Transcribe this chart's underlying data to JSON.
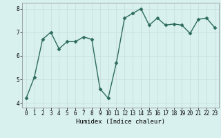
{
  "x": [
    0,
    1,
    2,
    3,
    4,
    5,
    6,
    7,
    8,
    9,
    10,
    11,
    12,
    13,
    14,
    15,
    16,
    17,
    18,
    19,
    20,
    21,
    22,
    23
  ],
  "y": [
    4.2,
    5.1,
    6.7,
    7.0,
    6.3,
    6.6,
    6.6,
    6.8,
    6.7,
    4.6,
    4.2,
    5.7,
    7.6,
    7.8,
    8.0,
    7.3,
    7.6,
    7.3,
    7.35,
    7.3,
    6.95,
    7.55,
    7.6,
    7.2
  ],
  "line_color": "#2d6b5e",
  "marker": "D",
  "markersize": 2.5,
  "linewidth": 1.0,
  "xlabel": "Humidex (Indice chaleur)",
  "xlim": [
    -0.5,
    23.5
  ],
  "ylim": [
    3.8,
    8.25
  ],
  "yticks": [
    4,
    5,
    6,
    7,
    8
  ],
  "xticks": [
    0,
    1,
    2,
    3,
    4,
    5,
    6,
    7,
    8,
    9,
    10,
    11,
    12,
    13,
    14,
    15,
    16,
    17,
    18,
    19,
    20,
    21,
    22,
    23
  ],
  "bg_color": "#d8f0ee",
  "grid_color": "#c8ddd9",
  "tick_fontsize": 5.5,
  "xlabel_fontsize": 6.5
}
